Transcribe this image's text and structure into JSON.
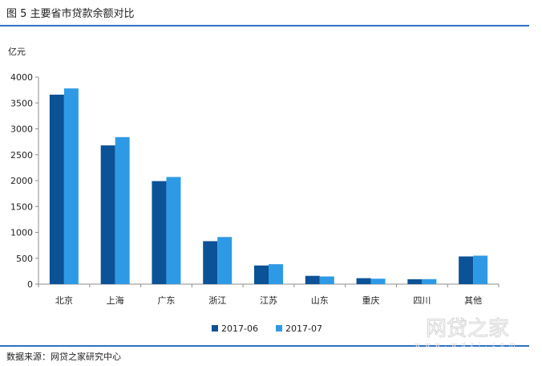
{
  "figure": {
    "title": "图 5   主要省市贷款余额对比",
    "source": "数据来源：网贷之家研究中心",
    "watermark": "网贷之家",
    "watermark_url": "www.wdzj.com"
  },
  "colors": {
    "series_2017_06": "#0c5296",
    "series_2017_07": "#2e9ae6",
    "rule": "#2a73c7"
  },
  "chart_data": {
    "type": "bar",
    "title": "",
    "xlabel": "",
    "ylabel": "亿元",
    "ylim": [
      0,
      4000
    ],
    "yticks": [
      0,
      500,
      1000,
      1500,
      2000,
      2500,
      3000,
      3500,
      4000
    ],
    "grid": false,
    "legend_position": "bottom",
    "categories": [
      "北京",
      "上海",
      "广东",
      "浙江",
      "江苏",
      "山东",
      "重庆",
      "四川",
      "其他"
    ],
    "series": [
      {
        "name": "2017-06",
        "values": [
          3660,
          2680,
          1990,
          830,
          360,
          160,
          115,
          95,
          535
        ]
      },
      {
        "name": "2017-07",
        "values": [
          3780,
          2840,
          2070,
          910,
          385,
          148,
          105,
          97,
          550
        ]
      }
    ]
  }
}
